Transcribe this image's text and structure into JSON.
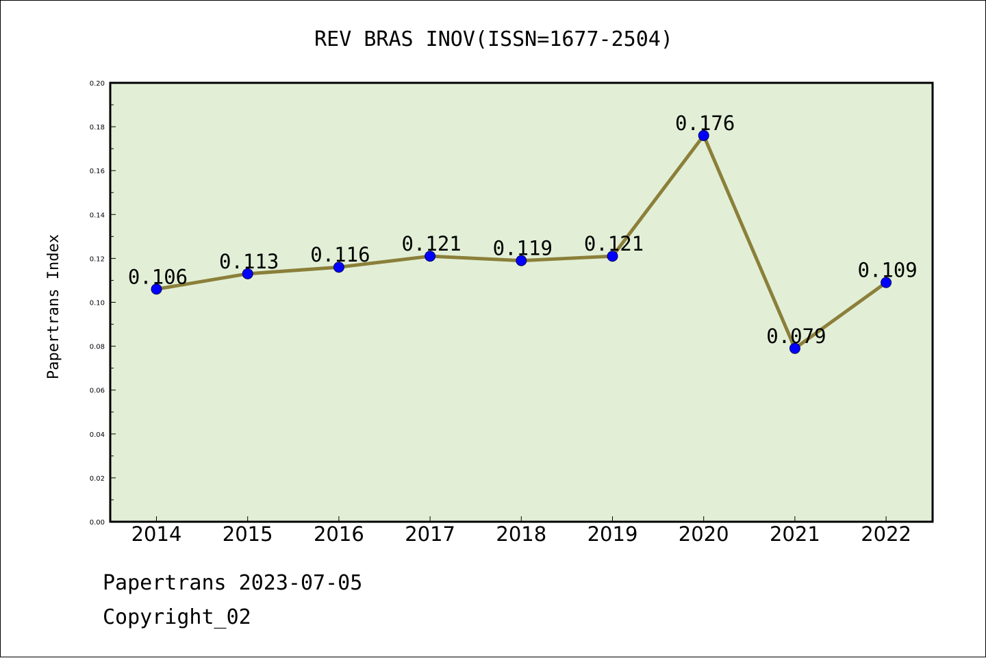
{
  "footer": {
    "line1": "Papertrans 2023-07-05",
    "line2": "Copyright_02"
  },
  "colors": {
    "plot_background": "#e2efd6",
    "line": "#8b7f3a",
    "marker": "#0000ff"
  },
  "chart_data": {
    "type": "line",
    "title": "REV BRAS INOV(ISSN=1677-2504)",
    "xlabel": "",
    "ylabel": "Papertrans Index",
    "categories": [
      "2014",
      "2015",
      "2016",
      "2017",
      "2018",
      "2019",
      "2020",
      "2021",
      "2022"
    ],
    "series": [
      {
        "values": [
          0.106,
          0.113,
          0.116,
          0.121,
          0.119,
          0.121,
          0.176,
          0.079,
          0.109
        ],
        "data_labels": [
          "0.106",
          "0.113",
          "0.116",
          "0.121",
          "0.119",
          "0.121",
          "0.176",
          "0.079",
          "0.109"
        ]
      }
    ],
    "ylim": [
      0,
      0.2
    ],
    "yticks": [
      "0.00",
      "0.02",
      "0.04",
      "0.06",
      "0.08",
      "0.10",
      "0.12",
      "0.14",
      "0.16",
      "0.18",
      "0.20"
    ],
    "grid": false,
    "legend": "none"
  }
}
